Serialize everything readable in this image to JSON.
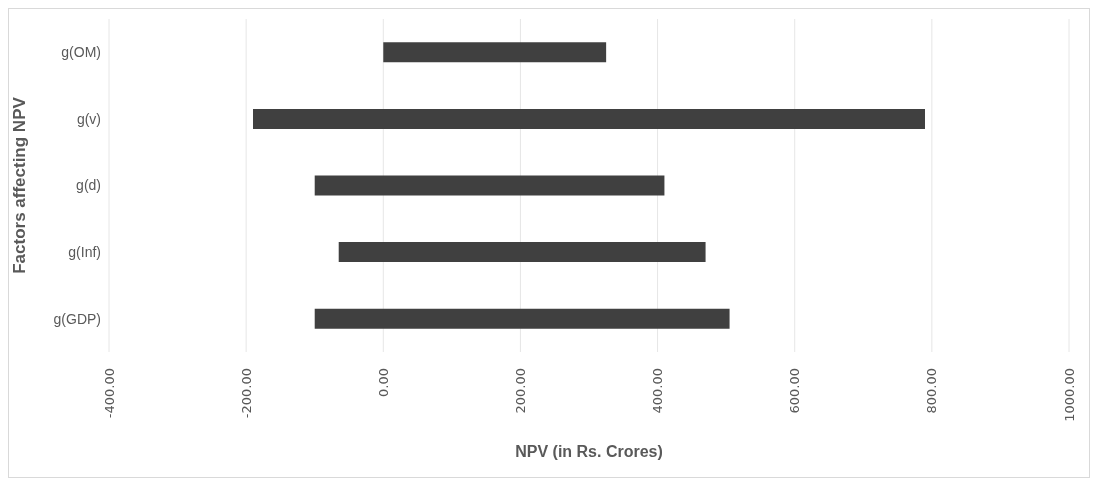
{
  "chart_data": {
    "type": "bar",
    "orientation": "horizontal",
    "categories": [
      "g(OM)",
      "g(v)",
      "g(d)",
      "g(Inf)",
      "g(GDP)"
    ],
    "base": [
      0,
      -190,
      -100,
      -65,
      -100
    ],
    "values": [
      325,
      980,
      510,
      535,
      605
    ],
    "color": "#404040",
    "xlim": [
      -400,
      1000
    ],
    "xticks": [
      {
        "value": -400,
        "label": "-400.00"
      },
      {
        "value": -200,
        "label": "-200.00"
      },
      {
        "value": 0,
        "label": "0.00"
      },
      {
        "value": 200,
        "label": "200.00"
      },
      {
        "value": 400,
        "label": "400.00"
      },
      {
        "value": 600,
        "label": "600.00"
      },
      {
        "value": 800,
        "label": "800.00"
      },
      {
        "value": 1000,
        "label": "1000.00"
      }
    ],
    "xlabel": "NPV (in Rs. Crores)",
    "ylabel": "Factors affecting NPV",
    "grid": "x",
    "legend": false
  }
}
